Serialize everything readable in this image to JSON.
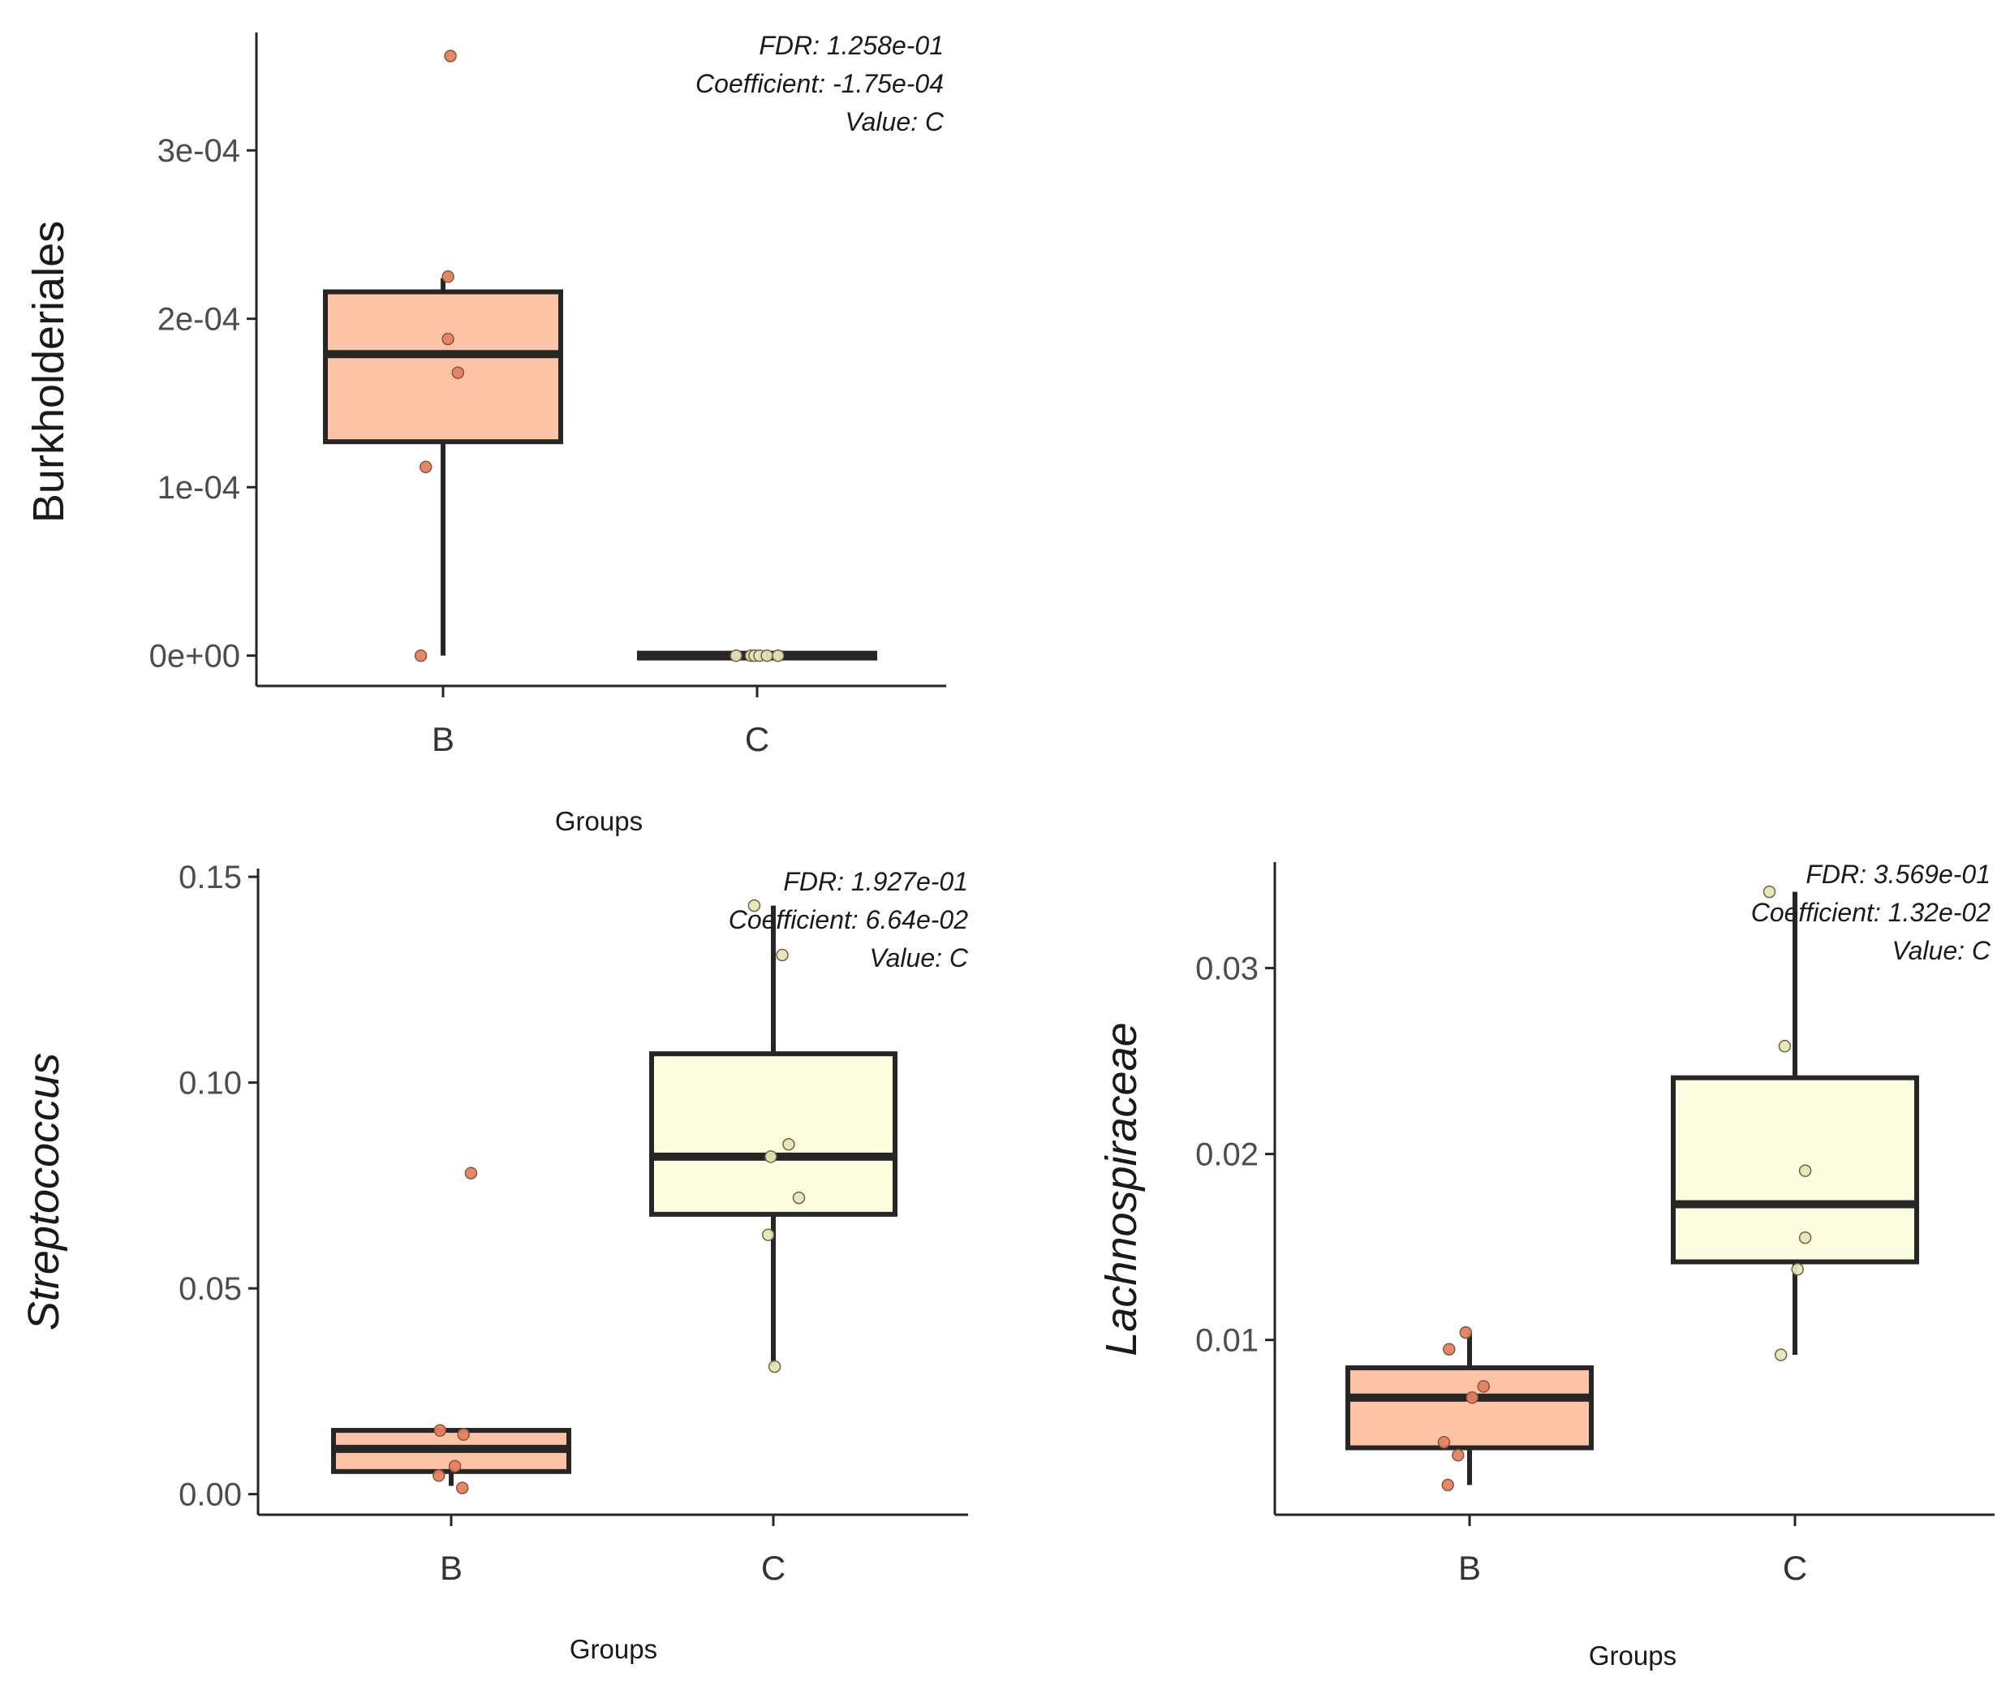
{
  "colors": {
    "B": {
      "fill": "#fcc3a6",
      "point": "#e8805c"
    },
    "C": {
      "fill": "#fdfde0",
      "point": "#e3e8b4"
    },
    "line": "#262626"
  },
  "chart_data": [
    {
      "type": "box",
      "ylabel": "Burkholderiales",
      "ylabel_italic": false,
      "xlabel": "Groups",
      "categories": [
        "B",
        "C"
      ],
      "ylim": [
        -1.8e-05,
        0.00037
      ],
      "yticks": [
        {
          "value": 0,
          "label": "0e+00"
        },
        {
          "value": 0.0001,
          "label": "1e-04"
        },
        {
          "value": 0.0002,
          "label": "2e-04"
        },
        {
          "value": 0.0003,
          "label": "3e-04"
        }
      ],
      "annotations": [
        "FDR: 1.258e-01",
        "Coefficient: -1.75e-04",
        "Value: C"
      ],
      "boxes": [
        {
          "group": "B",
          "min": 0.0,
          "q1": 0.000127,
          "median": 0.000179,
          "q3": 0.000216,
          "max": 0.000224
        },
        {
          "group": "C",
          "min": 0.0,
          "q1": 0.0,
          "median": 0.0,
          "q3": 0.0,
          "max": 0.0
        }
      ],
      "points": [
        {
          "group": "B",
          "y": 0.0,
          "jitter": -0.18
        },
        {
          "group": "B",
          "y": 0.000112,
          "jitter": -0.14
        },
        {
          "group": "B",
          "y": 0.000168,
          "jitter": 0.12
        },
        {
          "group": "B",
          "y": 0.000188,
          "jitter": 0.04
        },
        {
          "group": "B",
          "y": 0.000225,
          "jitter": 0.04
        },
        {
          "group": "B",
          "y": 0.000356,
          "jitter": 0.06
        },
        {
          "group": "C",
          "y": 0.0,
          "jitter": -0.17
        },
        {
          "group": "C",
          "y": 0.0,
          "jitter": -0.05
        },
        {
          "group": "C",
          "y": 0.0,
          "jitter": -0.02
        },
        {
          "group": "C",
          "y": 0.0,
          "jitter": 0.02
        },
        {
          "group": "C",
          "y": 0.0,
          "jitter": 0.08
        },
        {
          "group": "C",
          "y": 0.0,
          "jitter": 0.17
        }
      ]
    },
    {
      "type": "box",
      "ylabel": "Streptococcus",
      "ylabel_italic": true,
      "xlabel": "Groups",
      "categories": [
        "B",
        "C"
      ],
      "ylim": [
        -0.005,
        0.152
      ],
      "yticks": [
        {
          "value": 0,
          "label": "0.00"
        },
        {
          "value": 0.05,
          "label": "0.05"
        },
        {
          "value": 0.1,
          "label": "0.10"
        },
        {
          "value": 0.15,
          "label": "0.15"
        }
      ],
      "annotations": [
        "FDR: 1.927e-01",
        "Coefficient: 6.64e-02",
        "Value: C"
      ],
      "boxes": [
        {
          "group": "B",
          "min": 0.002,
          "q1": 0.0055,
          "median": 0.011,
          "q3": 0.0155,
          "max": 0.0155
        },
        {
          "group": "C",
          "min": 0.031,
          "q1": 0.068,
          "median": 0.082,
          "q3": 0.107,
          "max": 0.143
        }
      ],
      "points": [
        {
          "group": "B",
          "y": 0.0045,
          "jitter": -0.1
        },
        {
          "group": "B",
          "y": 0.0155,
          "jitter": -0.09
        },
        {
          "group": "B",
          "y": 0.0145,
          "jitter": 0.1
        },
        {
          "group": "B",
          "y": 0.0068,
          "jitter": 0.03
        },
        {
          "group": "B",
          "y": 0.0015,
          "jitter": 0.09
        },
        {
          "group": "B",
          "y": 0.078,
          "jitter": 0.16
        },
        {
          "group": "C",
          "y": 0.143,
          "jitter": -0.15
        },
        {
          "group": "C",
          "y": 0.131,
          "jitter": 0.07
        },
        {
          "group": "C",
          "y": 0.085,
          "jitter": 0.12
        },
        {
          "group": "C",
          "y": 0.082,
          "jitter": -0.02
        },
        {
          "group": "C",
          "y": 0.072,
          "jitter": 0.2
        },
        {
          "group": "C",
          "y": 0.063,
          "jitter": -0.04
        },
        {
          "group": "C",
          "y": 0.031,
          "jitter": 0.01
        }
      ]
    },
    {
      "type": "box",
      "ylabel": "Lachnospiraceae",
      "ylabel_italic": true,
      "xlabel": "Groups",
      "categories": [
        "B",
        "C"
      ],
      "ylim": [
        0.0006,
        0.0357
      ],
      "yticks": [
        {
          "value": 0.01,
          "label": "0.01"
        },
        {
          "value": 0.02,
          "label": "0.02"
        },
        {
          "value": 0.03,
          "label": "0.03"
        }
      ],
      "annotations": [
        "FDR: 3.569e-01",
        "Coefficient: 1.32e-02",
        "Value: C"
      ],
      "boxes": [
        {
          "group": "B",
          "min": 0.0022,
          "q1": 0.0042,
          "median": 0.0069,
          "q3": 0.0085,
          "max": 0.0104
        },
        {
          "group": "C",
          "min": 0.0092,
          "q1": 0.0142,
          "median": 0.0173,
          "q3": 0.0241,
          "max": 0.0341
        }
      ],
      "points": [
        {
          "group": "B",
          "y": 0.0095,
          "jitter": -0.16
        },
        {
          "group": "B",
          "y": 0.0104,
          "jitter": -0.03
        },
        {
          "group": "B",
          "y": 0.0075,
          "jitter": 0.11
        },
        {
          "group": "B",
          "y": 0.0069,
          "jitter": 0.02
        },
        {
          "group": "B",
          "y": 0.0045,
          "jitter": -0.2
        },
        {
          "group": "B",
          "y": 0.0038,
          "jitter": -0.09
        },
        {
          "group": "B",
          "y": 0.0022,
          "jitter": -0.17
        },
        {
          "group": "C",
          "y": 0.0341,
          "jitter": -0.2
        },
        {
          "group": "C",
          "y": 0.0258,
          "jitter": -0.08
        },
        {
          "group": "C",
          "y": 0.0191,
          "jitter": 0.08
        },
        {
          "group": "C",
          "y": 0.0155,
          "jitter": 0.08
        },
        {
          "group": "C",
          "y": 0.0138,
          "jitter": 0.02
        },
        {
          "group": "C",
          "y": 0.0092,
          "jitter": -0.11
        }
      ]
    }
  ]
}
